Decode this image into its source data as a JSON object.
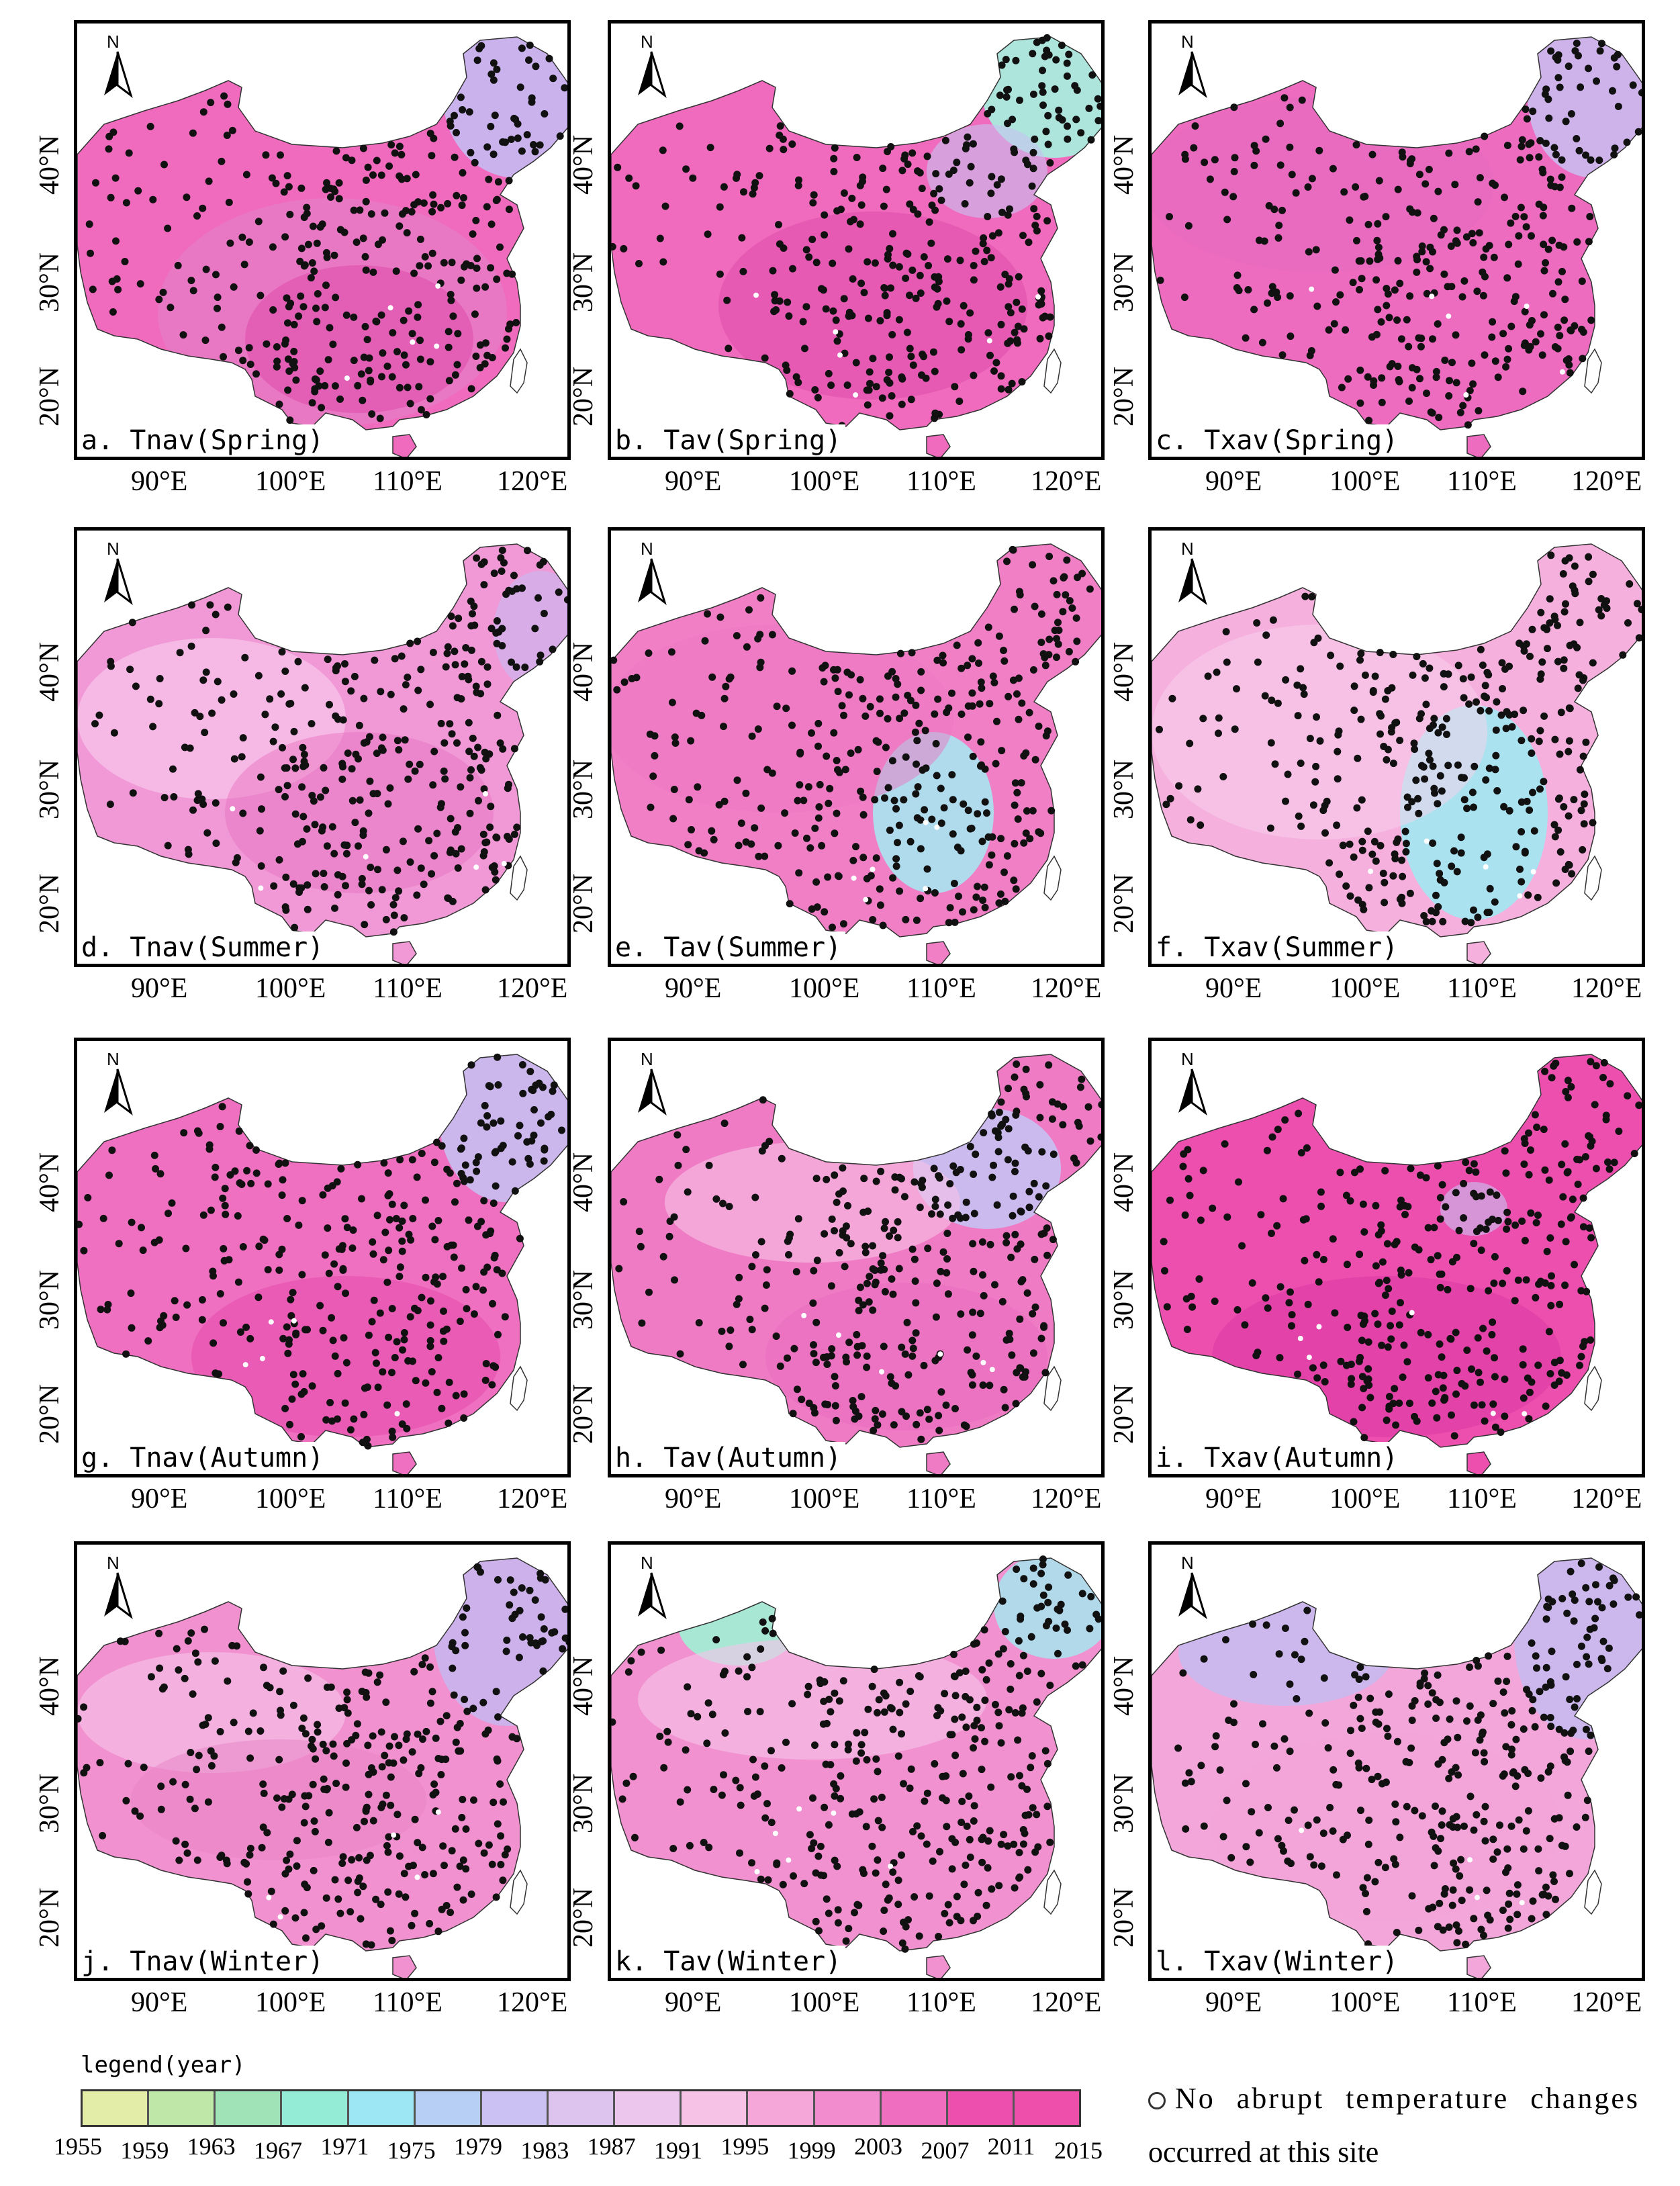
{
  "panels": [
    {
      "label": "a. Tnav(Spring)",
      "variable": "Tnav",
      "season": "Spring",
      "dominant_color": "#f06bbd"
    },
    {
      "label": "b. Tav(Spring)",
      "variable": "Tav",
      "season": "Spring",
      "dominant_color": "#f06bbd"
    },
    {
      "label": "c. Txav(Spring)",
      "variable": "Txav",
      "season": "Spring",
      "dominant_color": "#ee6cc0"
    },
    {
      "label": "d. Tnav(Summer)",
      "variable": "Tnav",
      "season": "Summer",
      "dominant_color": "#f199d6"
    },
    {
      "label": "e. Tav(Summer)",
      "variable": "Tav",
      "season": "Summer",
      "dominant_color": "#f07fc6"
    },
    {
      "label": "f. Txav(Summer)",
      "variable": "Txav",
      "season": "Summer",
      "dominant_color": "#f5b0de"
    },
    {
      "label": "g. Tnav(Autumn)",
      "variable": "Tnav",
      "season": "Autumn",
      "dominant_color": "#ef6fc0"
    },
    {
      "label": "h. Tav(Autumn)",
      "variable": "Tav",
      "season": "Autumn",
      "dominant_color": "#f07bc5"
    },
    {
      "label": "i. Txav(Autumn)",
      "variable": "Txav",
      "season": "Autumn",
      "dominant_color": "#ec4fae"
    },
    {
      "label": "j. Tnav(Winter)",
      "variable": "Tnav",
      "season": "Winter",
      "dominant_color": "#f191cf"
    },
    {
      "label": "k. Tav(Winter)",
      "variable": "Tav",
      "season": "Winter",
      "dominant_color": "#f191cf"
    },
    {
      "label": "l. Txav(Winter)",
      "variable": "Txav",
      "season": "Winter",
      "dominant_color": "#f3a6da"
    }
  ],
  "axes": {
    "x_ticks": [
      "90°E",
      "100°E",
      "110°E",
      "120°E"
    ],
    "y_ticks": [
      "20°N",
      "30°N",
      "40°N"
    ],
    "north_label": "N"
  },
  "legend": {
    "title": "legend(year)",
    "years": [
      "1955",
      "1959",
      "1963",
      "1967",
      "1971",
      "1975",
      "1979",
      "1983",
      "1987",
      "1991",
      "1995",
      "1999",
      "2003",
      "2007",
      "2011",
      "2015"
    ],
    "colors": [
      "#e3eda7",
      "#bfe7a8",
      "#9fe3b6",
      "#94ecd6",
      "#9de6f3",
      "#b8cff5",
      "#ccc1f3",
      "#ddc4ef",
      "#ecc6ec",
      "#f6c3e6",
      "#f5a7d9",
      "#f38ccf",
      "#f06ebf",
      "#ed4fae",
      "#ee4fab"
    ],
    "note_line1": "No abrupt temperature changes",
    "note_line2": "occurred at this site"
  }
}
